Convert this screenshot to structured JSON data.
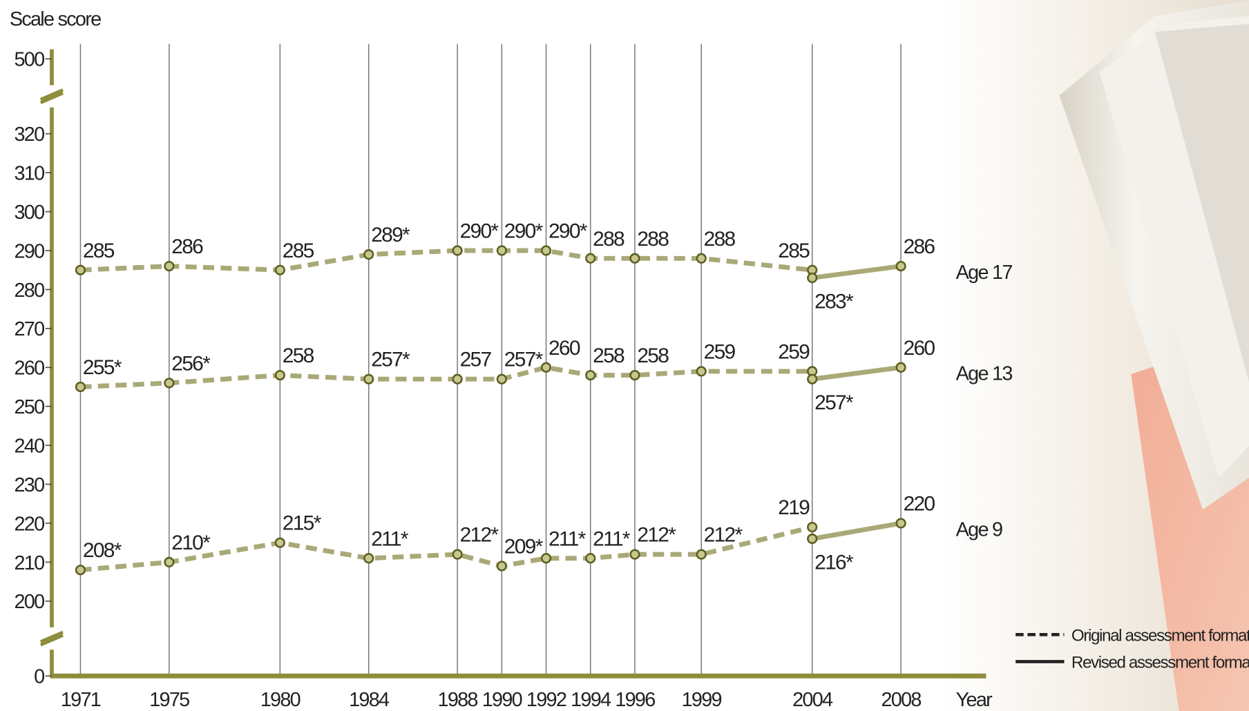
{
  "chart_data": {
    "type": "line",
    "y_label": "Scale score",
    "x_label": "Year",
    "xticks": [
      1971,
      1975,
      1980,
      1984,
      1988,
      1990,
      1992,
      1994,
      1996,
      1999,
      2004,
      2008
    ],
    "xlim": [
      1971,
      2008
    ],
    "ylim": [
      0,
      500
    ],
    "yticks": [
      0,
      200,
      210,
      220,
      230,
      240,
      250,
      260,
      270,
      280,
      290,
      300,
      310,
      320,
      500
    ],
    "axis_break": true,
    "grid": true,
    "color": "#a9a978",
    "marker_color": "#5e5e22",
    "axis_color": "#8d8d3c",
    "legend_position": "bottom-right",
    "legend": {
      "original": {
        "name": "Original assessment format",
        "dashed": true
      },
      "revised": {
        "name": "Revised assessment format",
        "dashed": false
      }
    },
    "series": [
      {
        "name": "Age 17",
        "original": {
          "x": [
            1971,
            1975,
            1980,
            1984,
            1988,
            1990,
            1992,
            1994,
            1996,
            1999,
            2004
          ],
          "values": [
            285,
            286,
            285,
            289,
            290,
            290,
            290,
            288,
            288,
            288,
            285
          ],
          "value_labels": [
            "285",
            "286",
            "285",
            "289*",
            "290*",
            "290*",
            "290*",
            "288",
            "288",
            "288",
            "285"
          ]
        },
        "revised": {
          "x": [
            2004,
            2008
          ],
          "values": [
            283,
            286
          ],
          "value_labels": [
            "283*",
            "286"
          ]
        }
      },
      {
        "name": "Age 13",
        "original": {
          "x": [
            1971,
            1975,
            1980,
            1984,
            1988,
            1990,
            1992,
            1994,
            1996,
            1999,
            2004
          ],
          "values": [
            255,
            256,
            258,
            257,
            257,
            257,
            260,
            258,
            258,
            259,
            259
          ],
          "value_labels": [
            "255*",
            "256*",
            "258",
            "257*",
            "257",
            "257*",
            "260",
            "258",
            "258",
            "259",
            "259"
          ]
        },
        "revised": {
          "x": [
            2004,
            2008
          ],
          "values": [
            257,
            260
          ],
          "value_labels": [
            "257*",
            "260"
          ]
        }
      },
      {
        "name": "Age 9",
        "original": {
          "x": [
            1971,
            1975,
            1980,
            1984,
            1988,
            1990,
            1992,
            1994,
            1996,
            1999,
            2004
          ],
          "values": [
            208,
            210,
            215,
            211,
            212,
            209,
            211,
            211,
            212,
            212,
            219
          ],
          "value_labels": [
            "208*",
            "210*",
            "215*",
            "211*",
            "212*",
            "209*",
            "211*",
            "211*",
            "212*",
            "212*",
            "219"
          ]
        },
        "revised": {
          "x": [
            2004,
            2008
          ],
          "values": [
            216,
            220
          ],
          "value_labels": [
            "216*",
            "220"
          ]
        }
      }
    ]
  }
}
